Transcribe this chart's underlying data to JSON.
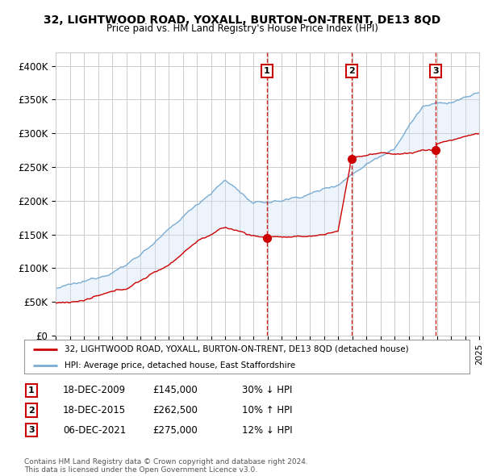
{
  "title": "32, LIGHTWOOD ROAD, YOXALL, BURTON-ON-TRENT, DE13 8QD",
  "subtitle": "Price paid vs. HM Land Registry's House Price Index (HPI)",
  "ylim": [
    0,
    420000
  ],
  "yticks": [
    0,
    50000,
    100000,
    150000,
    200000,
    250000,
    300000,
    350000,
    400000
  ],
  "ytick_labels": [
    "£0",
    "£50K",
    "£100K",
    "£150K",
    "£200K",
    "£250K",
    "£300K",
    "£350K",
    "£400K"
  ],
  "sale_year_floats": [
    2009.958,
    2015.958,
    2021.917
  ],
  "sale_prices": [
    145000,
    262500,
    275000
  ],
  "sale_labels": [
    "1",
    "2",
    "3"
  ],
  "sale_info": [
    {
      "num": "1",
      "date": "18-DEC-2009",
      "price": "£145,000",
      "hpi": "30% ↓ HPI"
    },
    {
      "num": "2",
      "date": "18-DEC-2015",
      "price": "£262,500",
      "hpi": "10% ↑ HPI"
    },
    {
      "num": "3",
      "date": "06-DEC-2021",
      "price": "£275,000",
      "hpi": "12% ↓ HPI"
    }
  ],
  "legend_line1": "32, LIGHTWOOD ROAD, YOXALL, BURTON-ON-TRENT, DE13 8QD (detached house)",
  "legend_line2": "HPI: Average price, detached house, East Staffordshire",
  "footer": "Contains HM Land Registry data © Crown copyright and database right 2024.\nThis data is licensed under the Open Government Licence v3.0.",
  "house_color": "#cc0000",
  "hpi_color": "#7aadd4",
  "shade_color": "#cce0f5",
  "vline_color": "#cc0000",
  "box_color": "#cc0000",
  "background_color": "#ffffff",
  "grid_color": "#cccccc",
  "x_start_year": 1995,
  "x_end_year": 2025,
  "hpi_breakpoints": [
    1995,
    1997,
    2000,
    2003,
    2005,
    2007,
    2008,
    2009,
    2011,
    2013,
    2015,
    2017,
    2019,
    2021,
    2023,
    2025
  ],
  "hpi_values": [
    70000,
    78000,
    105000,
    155000,
    195000,
    230000,
    215000,
    195000,
    200000,
    210000,
    225000,
    255000,
    280000,
    340000,
    345000,
    360000
  ],
  "house_breakpoints": [
    1995,
    1997,
    2000,
    2003,
    2005,
    2007,
    2008,
    2009.0,
    2009.96,
    2010,
    2012,
    2014,
    2015.0,
    2015.96,
    2016,
    2018,
    2020,
    2021.0,
    2021.92,
    2022,
    2024,
    2025
  ],
  "house_values": [
    48000,
    52000,
    70000,
    105000,
    140000,
    160000,
    155000,
    148000,
    145000,
    148000,
    145000,
    150000,
    155000,
    262500,
    265000,
    270000,
    270000,
    275000,
    275000,
    285000,
    295000,
    300000
  ]
}
